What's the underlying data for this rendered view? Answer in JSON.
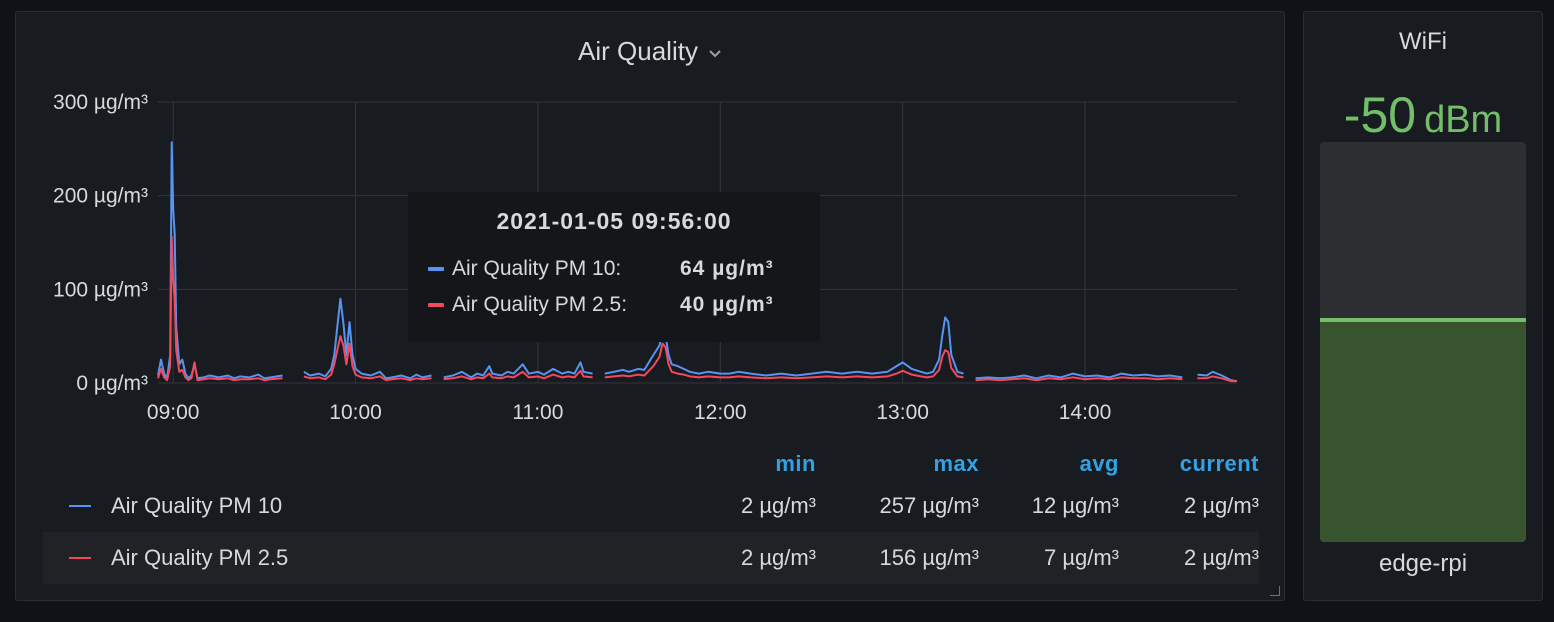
{
  "air_quality": {
    "title": "Air Quality",
    "tooltip": {
      "time": "2021-01-05 09:56:00",
      "rows": [
        {
          "name": "Air Quality PM 10:",
          "value": "64 µg/m³",
          "color": "#5794f2"
        },
        {
          "name": "Air Quality PM 2.5:",
          "value": "40 µg/m³",
          "color": "#f2495c"
        }
      ]
    },
    "legend": {
      "headers": [
        "min",
        "max",
        "avg",
        "current"
      ],
      "rows": [
        {
          "name": "Air Quality PM 10",
          "color": "#5794f2",
          "min": "2 µg/m³",
          "max": "257 µg/m³",
          "avg": "12 µg/m³",
          "current": "2 µg/m³"
        },
        {
          "name": "Air Quality PM 2.5",
          "color": "#f2495c",
          "min": "2 µg/m³",
          "max": "156 µg/m³",
          "avg": "7 µg/m³",
          "current": "2 µg/m³"
        }
      ]
    }
  },
  "chart_data": {
    "type": "line",
    "title": "Air Quality",
    "xlabel": "",
    "ylabel": "",
    "x_ticks": [
      "09:00",
      "10:00",
      "11:00",
      "12:00",
      "13:00",
      "14:00"
    ],
    "y_ticks": [
      "0 µg/m³",
      "100 µg/m³",
      "200 µg/m³",
      "300 µg/m³"
    ],
    "ylim": [
      0,
      300
    ],
    "xlim": [
      "08:55",
      "14:50"
    ],
    "grid": true,
    "series": [
      {
        "name": "Air Quality PM 10",
        "color": "#5794f2",
        "points": [
          [
            "08:55",
            8
          ],
          [
            "08:56",
            25
          ],
          [
            "08:57",
            10
          ],
          [
            "08:58",
            5
          ],
          [
            "08:59",
            30
          ],
          [
            "08:59:30",
            257
          ],
          [
            "09:00",
            185
          ],
          [
            "09:00:30",
            160
          ],
          [
            "09:01",
            60
          ],
          [
            "09:02",
            20
          ],
          [
            "09:03",
            25
          ],
          [
            "09:04",
            10
          ],
          [
            "09:05",
            5
          ],
          [
            "09:06",
            8
          ],
          [
            "09:07",
            20
          ],
          [
            "09:08",
            5
          ],
          [
            "09:10",
            6
          ],
          [
            "09:12",
            8
          ],
          [
            "09:15",
            6
          ],
          [
            "09:18",
            8
          ],
          [
            "09:20",
            5
          ],
          [
            "09:22",
            7
          ],
          [
            "09:25",
            6
          ],
          [
            "09:28",
            9
          ],
          [
            "09:30",
            5
          ],
          [
            "09:32",
            6
          ],
          [
            "09:36",
            8
          ],
          [
            "09:40",
            null
          ],
          [
            "09:43",
            12
          ],
          [
            "09:45",
            8
          ],
          [
            "09:48",
            10
          ],
          [
            "09:50",
            7
          ],
          [
            "09:52",
            15
          ],
          [
            "09:53",
            30
          ],
          [
            "09:54",
            60
          ],
          [
            "09:55",
            90
          ],
          [
            "09:56",
            64
          ],
          [
            "09:57",
            30
          ],
          [
            "09:58",
            65
          ],
          [
            "09:59",
            30
          ],
          [
            "10:00",
            15
          ],
          [
            "10:02",
            10
          ],
          [
            "10:05",
            8
          ],
          [
            "10:08",
            12
          ],
          [
            "10:10",
            5
          ],
          [
            "10:12",
            6
          ],
          [
            "10:15",
            8
          ],
          [
            "10:18",
            5
          ],
          [
            "10:20",
            9
          ],
          [
            "10:22",
            6
          ],
          [
            "10:25",
            8
          ],
          [
            "10:27",
            null
          ],
          [
            "10:29",
            6
          ],
          [
            "10:32",
            8
          ],
          [
            "10:35",
            12
          ],
          [
            "10:38",
            6
          ],
          [
            "10:40",
            10
          ],
          [
            "10:42",
            8
          ],
          [
            "10:44",
            18
          ],
          [
            "10:45",
            10
          ],
          [
            "10:48",
            8
          ],
          [
            "10:50",
            12
          ],
          [
            "10:52",
            10
          ],
          [
            "10:55",
            20
          ],
          [
            "10:57",
            10
          ],
          [
            "11:00",
            12
          ],
          [
            "11:02",
            9
          ],
          [
            "11:05",
            15
          ],
          [
            "11:08",
            10
          ],
          [
            "11:10",
            12
          ],
          [
            "11:12",
            10
          ],
          [
            "11:14",
            22
          ],
          [
            "11:15",
            12
          ],
          [
            "11:18",
            10
          ],
          [
            "11:20",
            null
          ],
          [
            "11:22",
            10
          ],
          [
            "11:25",
            12
          ],
          [
            "11:28",
            14
          ],
          [
            "11:30",
            12
          ],
          [
            "11:33",
            15
          ],
          [
            "11:35",
            14
          ],
          [
            "11:38",
            30
          ],
          [
            "11:40",
            40
          ],
          [
            "11:41",
            55
          ],
          [
            "11:42",
            50
          ],
          [
            "11:43",
            30
          ],
          [
            "11:44",
            20
          ],
          [
            "11:46",
            18
          ],
          [
            "11:48",
            15
          ],
          [
            "11:50",
            12
          ],
          [
            "11:53",
            10
          ],
          [
            "11:56",
            12
          ],
          [
            "12:00",
            10
          ],
          [
            "12:03",
            10
          ],
          [
            "12:06",
            12
          ],
          [
            "12:10",
            10
          ],
          [
            "12:15",
            8
          ],
          [
            "12:20",
            10
          ],
          [
            "12:25",
            8
          ],
          [
            "12:30",
            10
          ],
          [
            "12:35",
            12
          ],
          [
            "12:40",
            10
          ],
          [
            "12:45",
            12
          ],
          [
            "12:50",
            10
          ],
          [
            "12:55",
            12
          ],
          [
            "12:58",
            18
          ],
          [
            "13:00",
            22
          ],
          [
            "13:03",
            15
          ],
          [
            "13:06",
            12
          ],
          [
            "13:08",
            10
          ],
          [
            "13:10",
            12
          ],
          [
            "13:12",
            25
          ],
          [
            "13:13",
            50
          ],
          [
            "13:14",
            70
          ],
          [
            "13:15",
            65
          ],
          [
            "13:16",
            30
          ],
          [
            "13:18",
            12
          ],
          [
            "13:20",
            10
          ],
          [
            "13:22",
            null
          ],
          [
            "13:24",
            5
          ],
          [
            "13:28",
            6
          ],
          [
            "13:32",
            5
          ],
          [
            "13:36",
            6
          ],
          [
            "13:40",
            8
          ],
          [
            "13:44",
            5
          ],
          [
            "13:48",
            8
          ],
          [
            "13:52",
            6
          ],
          [
            "13:56",
            10
          ],
          [
            "14:00",
            7
          ],
          [
            "14:04",
            8
          ],
          [
            "14:08",
            6
          ],
          [
            "14:12",
            10
          ],
          [
            "14:16",
            8
          ],
          [
            "14:20",
            9
          ],
          [
            "14:24",
            7
          ],
          [
            "14:28",
            8
          ],
          [
            "14:32",
            6
          ],
          [
            "14:35",
            null
          ],
          [
            "14:37",
            9
          ],
          [
            "14:40",
            8
          ],
          [
            "14:42",
            12
          ],
          [
            "14:45",
            8
          ],
          [
            "14:48",
            3
          ],
          [
            "14:50",
            2
          ]
        ]
      },
      {
        "name": "Air Quality PM 2.5",
        "color": "#f2495c",
        "points": [
          [
            "08:55",
            5
          ],
          [
            "08:56",
            15
          ],
          [
            "08:57",
            6
          ],
          [
            "08:58",
            3
          ],
          [
            "08:59",
            18
          ],
          [
            "08:59:30",
            156
          ],
          [
            "09:00",
            110
          ],
          [
            "09:00:30",
            90
          ],
          [
            "09:01",
            35
          ],
          [
            "09:02",
            12
          ],
          [
            "09:03",
            14
          ],
          [
            "09:04",
            6
          ],
          [
            "09:05",
            3
          ],
          [
            "09:06",
            5
          ],
          [
            "09:07",
            22
          ],
          [
            "09:08",
            3
          ],
          [
            "09:10",
            4
          ],
          [
            "09:12",
            5
          ],
          [
            "09:15",
            4
          ],
          [
            "09:18",
            5
          ],
          [
            "09:20",
            3
          ],
          [
            "09:22",
            4
          ],
          [
            "09:25",
            4
          ],
          [
            "09:28",
            5
          ],
          [
            "09:30",
            3
          ],
          [
            "09:32",
            4
          ],
          [
            "09:36",
            5
          ],
          [
            "09:40",
            null
          ],
          [
            "09:43",
            7
          ],
          [
            "09:45",
            5
          ],
          [
            "09:48",
            6
          ],
          [
            "09:50",
            4
          ],
          [
            "09:52",
            9
          ],
          [
            "09:53",
            20
          ],
          [
            "09:54",
            35
          ],
          [
            "09:55",
            50
          ],
          [
            "09:56",
            40
          ],
          [
            "09:57",
            20
          ],
          [
            "09:58",
            42
          ],
          [
            "09:59",
            18
          ],
          [
            "10:00",
            9
          ],
          [
            "10:02",
            6
          ],
          [
            "10:05",
            5
          ],
          [
            "10:08",
            7
          ],
          [
            "10:10",
            3
          ],
          [
            "10:12",
            4
          ],
          [
            "10:15",
            5
          ],
          [
            "10:18",
            3
          ],
          [
            "10:20",
            5
          ],
          [
            "10:22",
            4
          ],
          [
            "10:25",
            5
          ],
          [
            "10:27",
            null
          ],
          [
            "10:29",
            4
          ],
          [
            "10:32",
            5
          ],
          [
            "10:35",
            7
          ],
          [
            "10:38",
            4
          ],
          [
            "10:40",
            6
          ],
          [
            "10:42",
            5
          ],
          [
            "10:44",
            10
          ],
          [
            "10:45",
            6
          ],
          [
            "10:48",
            5
          ],
          [
            "10:50",
            7
          ],
          [
            "10:52",
            6
          ],
          [
            "10:55",
            12
          ],
          [
            "10:57",
            6
          ],
          [
            "11:00",
            7
          ],
          [
            "11:02",
            5
          ],
          [
            "11:05",
            9
          ],
          [
            "11:08",
            6
          ],
          [
            "11:10",
            7
          ],
          [
            "11:12",
            6
          ],
          [
            "11:14",
            13
          ],
          [
            "11:15",
            7
          ],
          [
            "11:18",
            6
          ],
          [
            "11:20",
            null
          ],
          [
            "11:22",
            6
          ],
          [
            "11:25",
            7
          ],
          [
            "11:28",
            8
          ],
          [
            "11:30",
            7
          ],
          [
            "11:33",
            9
          ],
          [
            "11:35",
            8
          ],
          [
            "11:38",
            18
          ],
          [
            "11:40",
            28
          ],
          [
            "11:41",
            42
          ],
          [
            "11:42",
            38
          ],
          [
            "11:43",
            20
          ],
          [
            "11:44",
            12
          ],
          [
            "11:46",
            10
          ],
          [
            "11:48",
            9
          ],
          [
            "11:50",
            7
          ],
          [
            "11:53",
            6
          ],
          [
            "11:56",
            7
          ],
          [
            "12:00",
            6
          ],
          [
            "12:03",
            6
          ],
          [
            "12:06",
            7
          ],
          [
            "12:10",
            6
          ],
          [
            "12:15",
            5
          ],
          [
            "12:20",
            6
          ],
          [
            "12:25",
            5
          ],
          [
            "12:30",
            6
          ],
          [
            "12:35",
            7
          ],
          [
            "12:40",
            6
          ],
          [
            "12:45",
            7
          ],
          [
            "12:50",
            6
          ],
          [
            "12:55",
            7
          ],
          [
            "12:58",
            10
          ],
          [
            "13:00",
            13
          ],
          [
            "13:03",
            9
          ],
          [
            "13:06",
            7
          ],
          [
            "13:08",
            6
          ],
          [
            "13:10",
            7
          ],
          [
            "13:12",
            14
          ],
          [
            "13:13",
            28
          ],
          [
            "13:14",
            35
          ],
          [
            "13:15",
            33
          ],
          [
            "13:16",
            16
          ],
          [
            "13:18",
            7
          ],
          [
            "13:20",
            6
          ],
          [
            "13:22",
            null
          ],
          [
            "13:24",
            3
          ],
          [
            "13:28",
            4
          ],
          [
            "13:32",
            3
          ],
          [
            "13:36",
            4
          ],
          [
            "13:40",
            5
          ],
          [
            "13:44",
            3
          ],
          [
            "13:48",
            5
          ],
          [
            "13:52",
            4
          ],
          [
            "13:56",
            6
          ],
          [
            "14:00",
            4
          ],
          [
            "14:04",
            5
          ],
          [
            "14:08",
            4
          ],
          [
            "14:12",
            6
          ],
          [
            "14:16",
            5
          ],
          [
            "14:20",
            5
          ],
          [
            "14:24",
            4
          ],
          [
            "14:28",
            5
          ],
          [
            "14:32",
            4
          ],
          [
            "14:35",
            null
          ],
          [
            "14:37",
            5
          ],
          [
            "14:40",
            5
          ],
          [
            "14:42",
            7
          ],
          [
            "14:45",
            5
          ],
          [
            "14:48",
            2
          ],
          [
            "14:50",
            2
          ]
        ]
      }
    ]
  },
  "wifi": {
    "title": "WiFi",
    "value": "-50",
    "unit": "dBm",
    "fill_fraction": 0.56,
    "name": "edge-rpi",
    "color": "#73bf69"
  }
}
